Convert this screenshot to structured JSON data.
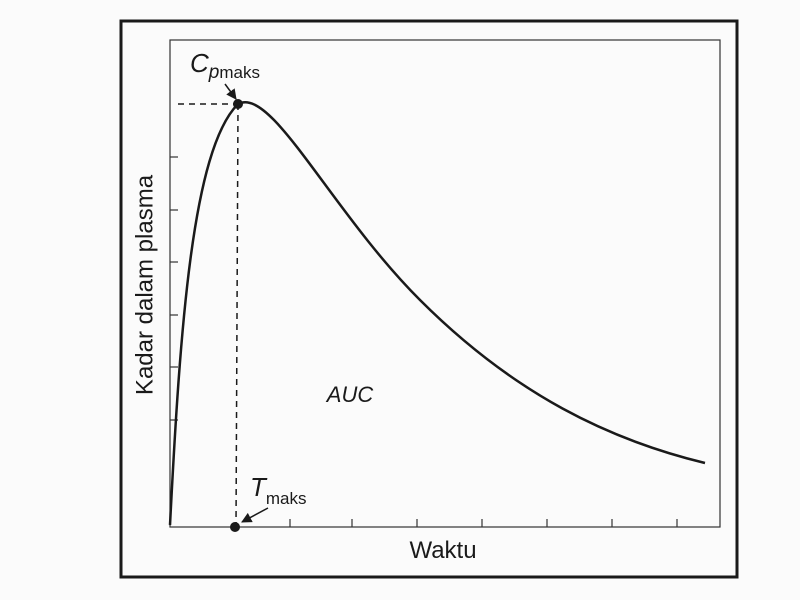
{
  "axes": {
    "y_label": "Kadar dalam plasma",
    "x_label": "Waktu"
  },
  "annotations": {
    "area": "AUC",
    "peak_concentration": {
      "symbol": "C",
      "subscript_symbol": "p",
      "subscript": "maks"
    },
    "peak_time": {
      "symbol": "T",
      "subscript": "maks"
    }
  }
}
